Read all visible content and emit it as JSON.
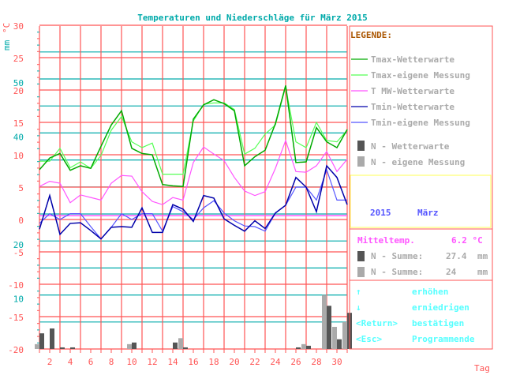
{
  "chart_data": {
    "type": "line",
    "title": "Temperaturen und Niederschläge für März 2015",
    "xlabel": "Tag",
    "ylabel_left": "°C",
    "ylabel_mm": "mm",
    "temp_ylim": [
      -20,
      30
    ],
    "temp_ticks": [
      "30",
      "25",
      "20",
      "15",
      "10",
      "5",
      "0",
      "-5",
      "-10",
      "-15",
      "-20"
    ],
    "mm_ticks": [
      "50",
      "40",
      "20",
      "10"
    ],
    "mm_tick_values": [
      50,
      40,
      20,
      10
    ],
    "x_ticks": [
      "2",
      "4",
      "6",
      "8",
      "10",
      "12",
      "14",
      "16",
      "18",
      "20",
      "22",
      "24",
      "26",
      "28",
      "30"
    ],
    "days": [
      1,
      2,
      3,
      4,
      5,
      6,
      7,
      8,
      9,
      10,
      11,
      12,
      13,
      14,
      15,
      16,
      17,
      18,
      19,
      20,
      21,
      22,
      23,
      24,
      25,
      26,
      27,
      28,
      29,
      30,
      31
    ],
    "grid": true,
    "legend_position": "right",
    "series": [
      {
        "name": "Tmax-Wetterwarte",
        "color": "#00aa00",
        "values": [
          7.7,
          9.5,
          10.2,
          7.6,
          8.3,
          7.9,
          11.3,
          14.6,
          16.8,
          11.0,
          10.2,
          10.0,
          5.4,
          5.2,
          5.1,
          15.5,
          17.7,
          18.5,
          17.9,
          16.8,
          8.3,
          9.7,
          10.7,
          14.8,
          20.7,
          8.8,
          8.9,
          14.2,
          12.0,
          11.1,
          13.9
        ]
      },
      {
        "name": "Tmax-eigene Messung",
        "color": "#55ff55",
        "values": [
          9.0,
          9.0,
          11.0,
          8.0,
          8.9,
          7.9,
          9.9,
          13.8,
          15.9,
          12.0,
          11.1,
          11.8,
          7.0,
          7.0,
          7.0,
          15.2,
          17.8,
          18.0,
          18.0,
          17.0,
          10.1,
          11.0,
          13.2,
          14.6,
          20.5,
          12.0,
          11.1,
          15.0,
          12.2,
          12.0,
          13.8
        ]
      },
      {
        "name": "T MW-Wetterwarte",
        "color": "#ff55ff",
        "values": [
          5.1,
          5.9,
          5.6,
          2.6,
          3.8,
          3.4,
          3.0,
          5.6,
          6.8,
          6.7,
          4.3,
          2.8,
          2.3,
          3.4,
          3.0,
          8.8,
          11.2,
          10.1,
          9.1,
          6.5,
          4.4,
          3.7,
          4.3,
          7.9,
          12.2,
          7.4,
          7.3,
          8.3,
          10.5,
          7.4,
          9.3
        ]
      },
      {
        "name": "Tmin-Wetterwarte",
        "color": "#0000aa",
        "values": [
          -1.5,
          3.7,
          -2.3,
          -0.6,
          -0.5,
          -1.7,
          -3.0,
          -1.2,
          -1.1,
          -1.2,
          1.8,
          -2.0,
          -2.0,
          2.3,
          1.6,
          -0.3,
          3.7,
          3.3,
          0.1,
          -0.9,
          -1.8,
          -0.2,
          -1.4,
          1.0,
          2.2,
          6.5,
          5.0,
          1.2,
          8.3,
          6.5,
          2.3
        ]
      },
      {
        "name": "Tmin-eigene Messung",
        "color": "#5555ff",
        "values": [
          -0.6,
          0.9,
          0.0,
          0.9,
          0.9,
          -1.1,
          -3.0,
          -1.2,
          0.9,
          0.0,
          0.9,
          0.9,
          -1.8,
          2.0,
          1.2,
          0.0,
          1.8,
          2.9,
          1.0,
          -0.2,
          -1.0,
          -1.1,
          -1.8,
          1.0,
          2.2,
          5.0,
          5.0,
          3.0,
          7.7,
          3.0,
          3.0
        ]
      }
    ],
    "monthly_mean_line": 0.6,
    "bars": [
      {
        "name": "N - Wetterwarte",
        "color": "#555555",
        "unit": "mm",
        "values": [
          2.9,
          3.8,
          0.3,
          0.3,
          0,
          0,
          0,
          0,
          0,
          1.2,
          0,
          0,
          0,
          1.2,
          0.3,
          0,
          0,
          0,
          0,
          0,
          0,
          0,
          0,
          0,
          0,
          0.3,
          0.6,
          0,
          8.0,
          1.8,
          6.7
        ]
      },
      {
        "name": "N - eigene Messung",
        "color": "#aaaaaa",
        "unit": "mm",
        "values": [
          0.9,
          0,
          0,
          0,
          0,
          0,
          0,
          0,
          0,
          0.9,
          0,
          0,
          0,
          0,
          2.0,
          0,
          0,
          0,
          0,
          0,
          0,
          0,
          0,
          0,
          0,
          0,
          0.9,
          0,
          10.0,
          4.1,
          5.0
        ]
      }
    ]
  },
  "legend": {
    "title": "LEGENDE:",
    "items": [
      "Tmax-Wetterwarte",
      "Tmax-eigene Messung",
      "T MW-Wetterwarte",
      "Tmin-Wetterwarte",
      "Tmin-eigene Messung",
      "N - Wetterwarte",
      "N - eigene Messung"
    ]
  },
  "period": {
    "year": "2015",
    "month": "März"
  },
  "stats": {
    "mean_label": "Mitteltemp.",
    "mean_value": "6.2 °C",
    "sum1_label": "N - Summe:",
    "sum1_value": "27.4",
    "sum1_unit": "mm",
    "sum2_label": "N - Summe:",
    "sum2_value": "24",
    "sum2_unit": "mm"
  },
  "keys": [
    {
      "key": "↑",
      "action": "erhöhen"
    },
    {
      "key": "↓",
      "action": "erniedrigen"
    },
    {
      "key": "<Return>",
      "action": "bestätigen"
    },
    {
      "key": "<Esc>",
      "action": "Programmende"
    }
  ],
  "colors": {
    "grid_red": "#ff5555",
    "grid_teal": "#00aaaa",
    "legend_text": "#aaaaaa",
    "legend_title": "#aa5500",
    "keys": "#55ffff",
    "period": "#5555ff",
    "mean": "#ff55ff",
    "yellow": "#ffff55"
  }
}
